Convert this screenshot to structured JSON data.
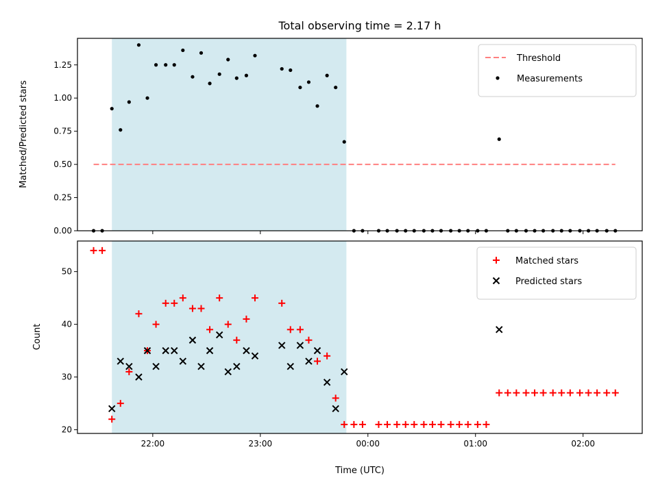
{
  "chart_data": {
    "title": "Total observing time = 2.17 h",
    "xlabel": "Time (UTC)",
    "x_tick_labels": [
      "22:00",
      "23:00",
      "00:00",
      "01:00",
      "02:00"
    ],
    "x_ticks_hours": [
      22,
      23,
      24,
      25,
      26
    ],
    "x_range_hours": [
      21.3,
      26.55
    ],
    "shaded_interval_hours": [
      21.62,
      23.8
    ],
    "shade_color": "#d4eaf0",
    "panels": [
      {
        "type": "scatter",
        "ylabel": "Matched/Predicted stars",
        "ylim": [
          0,
          1.45
        ],
        "y_ticks": [
          "0.00",
          "0.25",
          "0.50",
          "0.75",
          "1.00",
          "1.25"
        ],
        "y_tick_values": [
          0,
          0.25,
          0.5,
          0.75,
          1.0,
          1.25
        ],
        "legend_position": "upper right",
        "threshold": {
          "name": "Threshold",
          "value": 0.5,
          "x_range": [
            21.45,
            26.3
          ],
          "color": "#ff7f7f",
          "style": "dashed"
        },
        "series": [
          {
            "name": "Measurements",
            "marker": "dot",
            "color": "#000000",
            "points": [
              [
                21.45,
                0
              ],
              [
                21.53,
                0
              ],
              [
                21.62,
                0.92
              ],
              [
                21.7,
                0.76
              ],
              [
                21.78,
                0.97
              ],
              [
                21.87,
                1.4
              ],
              [
                21.95,
                1.0
              ],
              [
                22.03,
                1.25
              ],
              [
                22.12,
                1.25
              ],
              [
                22.2,
                1.25
              ],
              [
                22.28,
                1.36
              ],
              [
                22.37,
                1.16
              ],
              [
                22.45,
                1.34
              ],
              [
                22.53,
                1.11
              ],
              [
                22.62,
                1.18
              ],
              [
                22.7,
                1.29
              ],
              [
                22.78,
                1.15
              ],
              [
                22.87,
                1.17
              ],
              [
                22.95,
                1.32
              ],
              [
                23.2,
                1.22
              ],
              [
                23.28,
                1.21
              ],
              [
                23.37,
                1.08
              ],
              [
                23.45,
                1.12
              ],
              [
                23.53,
                0.94
              ],
              [
                23.62,
                1.17
              ],
              [
                23.7,
                1.08
              ],
              [
                23.78,
                0.67
              ],
              [
                23.87,
                0
              ],
              [
                23.95,
                0
              ],
              [
                24.1,
                0
              ],
              [
                24.18,
                0
              ],
              [
                24.27,
                0
              ],
              [
                24.35,
                0
              ],
              [
                24.43,
                0
              ],
              [
                24.52,
                0
              ],
              [
                24.6,
                0
              ],
              [
                24.68,
                0
              ],
              [
                24.77,
                0
              ],
              [
                24.85,
                0
              ],
              [
                24.93,
                0
              ],
              [
                25.02,
                0
              ],
              [
                25.1,
                0
              ],
              [
                25.22,
                0.69
              ],
              [
                25.3,
                0
              ],
              [
                25.38,
                0
              ],
              [
                25.47,
                0
              ],
              [
                25.55,
                0
              ],
              [
                25.63,
                0
              ],
              [
                25.72,
                0
              ],
              [
                25.8,
                0
              ],
              [
                25.88,
                0
              ],
              [
                25.97,
                0
              ],
              [
                26.05,
                0
              ],
              [
                26.13,
                0
              ],
              [
                26.22,
                0
              ],
              [
                26.3,
                0
              ]
            ]
          }
        ]
      },
      {
        "type": "scatter",
        "ylabel": "Count",
        "ylim": [
          19.3,
          55.8
        ],
        "y_ticks": [
          "20",
          "30",
          "40",
          "50"
        ],
        "y_tick_values": [
          20,
          30,
          40,
          50
        ],
        "legend_position": "upper right",
        "series": [
          {
            "name": "Matched stars",
            "marker": "plus",
            "color": "#ff0000",
            "points": [
              [
                21.45,
                54
              ],
              [
                21.53,
                54
              ],
              [
                21.62,
                22
              ],
              [
                21.7,
                25
              ],
              [
                21.78,
                31
              ],
              [
                21.87,
                42
              ],
              [
                21.95,
                35
              ],
              [
                22.03,
                40
              ],
              [
                22.12,
                44
              ],
              [
                22.2,
                44
              ],
              [
                22.28,
                45
              ],
              [
                22.37,
                43
              ],
              [
                22.45,
                43
              ],
              [
                22.53,
                39
              ],
              [
                22.62,
                45
              ],
              [
                22.7,
                40
              ],
              [
                22.78,
                37
              ],
              [
                22.87,
                41
              ],
              [
                22.95,
                45
              ],
              [
                23.2,
                44
              ],
              [
                23.28,
                39
              ],
              [
                23.37,
                39
              ],
              [
                23.45,
                37
              ],
              [
                23.53,
                33
              ],
              [
                23.62,
                34
              ],
              [
                23.7,
                26
              ],
              [
                23.78,
                21
              ],
              [
                23.87,
                21
              ],
              [
                23.95,
                21
              ],
              [
                24.1,
                21
              ],
              [
                24.18,
                21
              ],
              [
                24.27,
                21
              ],
              [
                24.35,
                21
              ],
              [
                24.43,
                21
              ],
              [
                24.52,
                21
              ],
              [
                24.6,
                21
              ],
              [
                24.68,
                21
              ],
              [
                24.77,
                21
              ],
              [
                24.85,
                21
              ],
              [
                24.93,
                21
              ],
              [
                25.02,
                21
              ],
              [
                25.1,
                21
              ],
              [
                25.22,
                27
              ],
              [
                25.3,
                27
              ],
              [
                25.38,
                27
              ],
              [
                25.47,
                27
              ],
              [
                25.55,
                27
              ],
              [
                25.63,
                27
              ],
              [
                25.72,
                27
              ],
              [
                25.8,
                27
              ],
              [
                25.88,
                27
              ],
              [
                25.97,
                27
              ],
              [
                26.05,
                27
              ],
              [
                26.13,
                27
              ],
              [
                26.22,
                27
              ],
              [
                26.3,
                27
              ]
            ]
          },
          {
            "name": "Predicted stars",
            "marker": "x",
            "color": "#000000",
            "points": [
              [
                21.62,
                24
              ],
              [
                21.7,
                33
              ],
              [
                21.78,
                32
              ],
              [
                21.87,
                30
              ],
              [
                21.95,
                35
              ],
              [
                22.03,
                32
              ],
              [
                22.12,
                35
              ],
              [
                22.2,
                35
              ],
              [
                22.28,
                33
              ],
              [
                22.37,
                37
              ],
              [
                22.45,
                32
              ],
              [
                22.53,
                35
              ],
              [
                22.62,
                38
              ],
              [
                22.7,
                31
              ],
              [
                22.78,
                32
              ],
              [
                22.87,
                35
              ],
              [
                22.95,
                34
              ],
              [
                23.2,
                36
              ],
              [
                23.28,
                32
              ],
              [
                23.37,
                36
              ],
              [
                23.45,
                33
              ],
              [
                23.53,
                35
              ],
              [
                23.62,
                29
              ],
              [
                23.7,
                24
              ],
              [
                23.78,
                31
              ],
              [
                25.22,
                39
              ]
            ]
          }
        ]
      }
    ]
  }
}
